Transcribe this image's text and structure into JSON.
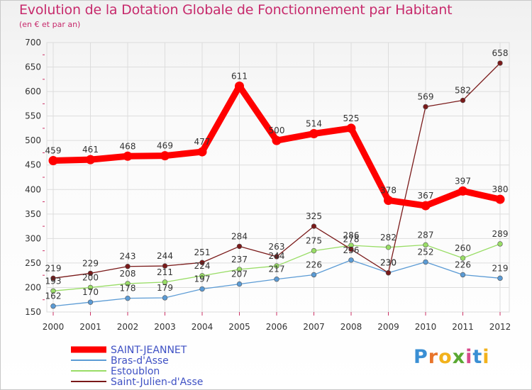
{
  "title": "Evolution de la Dotation Globale de Fonctionnement par Habitant",
  "subtitle": "(en € et par an)",
  "brand": {
    "letters": [
      "P",
      "r",
      "o",
      "x",
      "i",
      "t",
      "i"
    ],
    "colors": [
      "#3a8fd4",
      "#e8742a",
      "#f2b21c",
      "#5aa832",
      "#d94a8c",
      "#3a8fd4",
      "#f2b21c"
    ]
  },
  "chart_data": {
    "type": "line",
    "x": [
      "2000",
      "2001",
      "2002",
      "2003",
      "2004",
      "2005",
      "2006",
      "2007",
      "2008",
      "2009",
      "2010",
      "2011",
      "2012"
    ],
    "ylim": [
      150,
      700
    ],
    "yticks": [
      "150",
      "200",
      "250",
      "300",
      "350",
      "400",
      "450",
      "500",
      "550",
      "600",
      "650",
      "700"
    ],
    "grid": true,
    "legend_position": "bottom-left",
    "series": [
      {
        "name": "SAINT-JEANNET",
        "color": "#ff0000",
        "values": [
          459,
          461,
          468,
          469,
          477,
          611,
          500,
          514,
          525,
          378,
          367,
          397,
          380
        ],
        "labels": [
          "459",
          "461",
          "468",
          "469",
          "477",
          "611",
          "500",
          "514",
          "525",
          "378",
          "367",
          "397",
          "380"
        ]
      },
      {
        "name": "Bras-d'Asse",
        "color": "#5b9bd5",
        "values": [
          162,
          170,
          178,
          179,
          197,
          207,
          217,
          226,
          256,
          230,
          252,
          226,
          219
        ],
        "labels": [
          "162",
          "170",
          "178",
          "179",
          "197",
          "207",
          "217",
          "226",
          "256",
          "230",
          "252",
          "226",
          "219"
        ]
      },
      {
        "name": "Estoublon",
        "color": "#99dd66",
        "values": [
          193,
          200,
          208,
          211,
          224,
          237,
          244,
          275,
          286,
          282,
          287,
          260,
          289
        ],
        "labels": [
          "193",
          "200",
          "208",
          "211",
          "224",
          "237",
          "244",
          "275",
          "286",
          "282",
          "287",
          "260",
          "289"
        ]
      },
      {
        "name": "Saint-Julien-d'Asse",
        "color": "#7a1a1a",
        "values": [
          219,
          229,
          243,
          244,
          251,
          284,
          263,
          325,
          278,
          230,
          569,
          582,
          658
        ],
        "labels": [
          "219",
          "229",
          "243",
          "244",
          "251",
          "284",
          "263",
          "325",
          "278",
          "230",
          "569",
          "582",
          "658"
        ]
      }
    ]
  }
}
